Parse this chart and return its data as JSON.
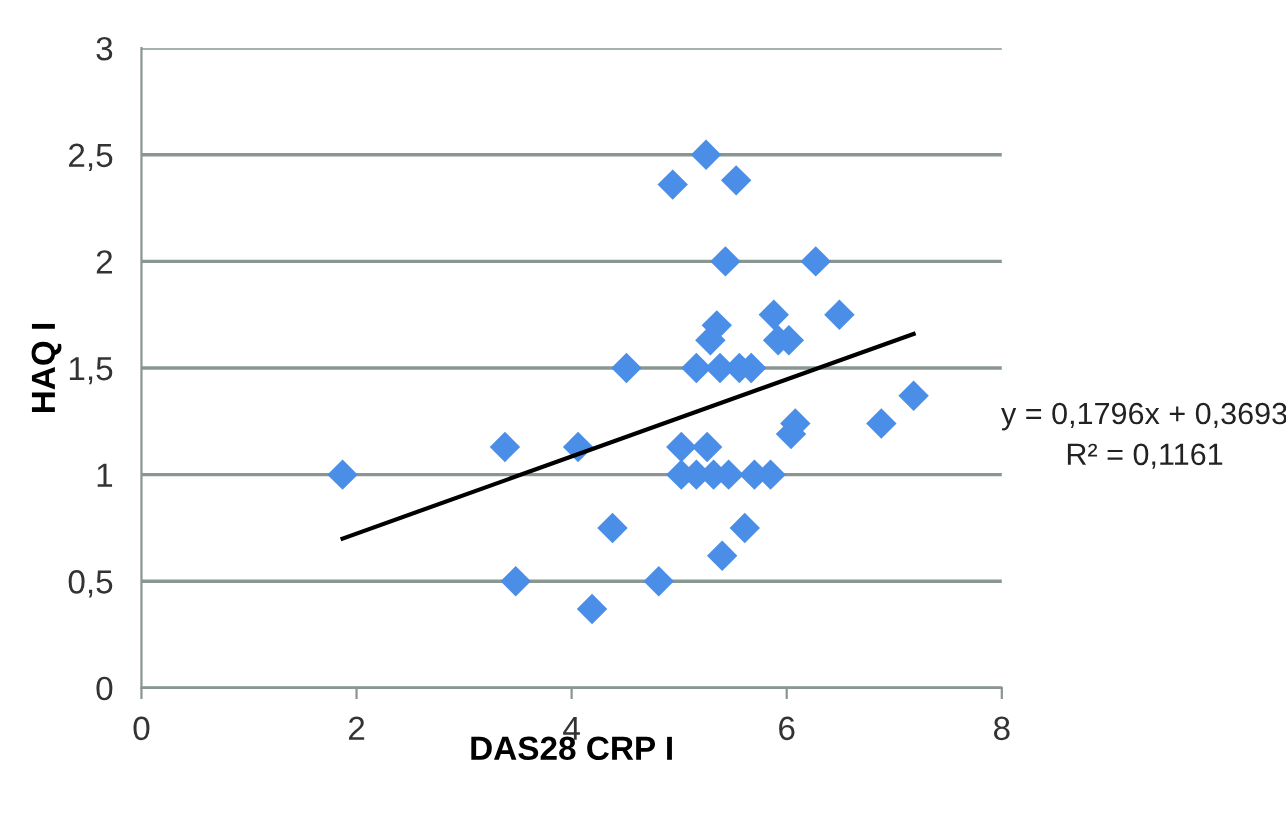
{
  "chart_data": {
    "type": "scatter",
    "xlabel": "DAS28 CRP I",
    "ylabel": "HAQ I",
    "xlim": [
      0,
      8
    ],
    "xticks": [
      0,
      2,
      4,
      6,
      8
    ],
    "ylim": [
      0,
      3
    ],
    "yticks": [
      0,
      {
        "value": 0.5,
        "label": "0,5"
      },
      1,
      {
        "value": 1.5,
        "label": "1,5"
      },
      2,
      {
        "value": 2.5,
        "label": "2,5"
      },
      3
    ],
    "grid": "y",
    "legend": false,
    "series": [
      {
        "marker": "diamond",
        "color": "#4a8ee8",
        "x": [
          1.87,
          3.38,
          3.48,
          4.06,
          4.19,
          4.38,
          4.51,
          4.81,
          4.94,
          5.02,
          5.02,
          5.16,
          5.16,
          5.25,
          5.26,
          5.29,
          5.35,
          5.32,
          5.4,
          5.38,
          5.43,
          5.46,
          5.53,
          5.56,
          5.61,
          5.67,
          5.7,
          5.85,
          5.88,
          5.92,
          6.02,
          6.04,
          6.08,
          6.27,
          6.49,
          6.88,
          7.18
        ],
        "values": [
          1.0,
          1.13,
          0.5,
          1.13,
          0.37,
          0.75,
          1.5,
          0.5,
          2.36,
          1.13,
          1.0,
          1.0,
          1.5,
          2.5,
          1.13,
          1.63,
          1.7,
          1.0,
          0.62,
          1.5,
          2.0,
          1.0,
          2.38,
          1.5,
          0.75,
          1.5,
          1.0,
          1.0,
          1.75,
          1.63,
          1.63,
          1.19,
          1.24,
          2.0,
          1.75,
          1.24,
          1.37
        ]
      },
      {
        "type": "line",
        "marker": "none",
        "color": "#000000",
        "x": [
          1.87,
          7.18
        ],
        "values": [
          0.7,
          1.66
        ]
      }
    ],
    "annotations": [
      "y = 0,1796x + 0,3693",
      "R² = 0,1161"
    ]
  }
}
